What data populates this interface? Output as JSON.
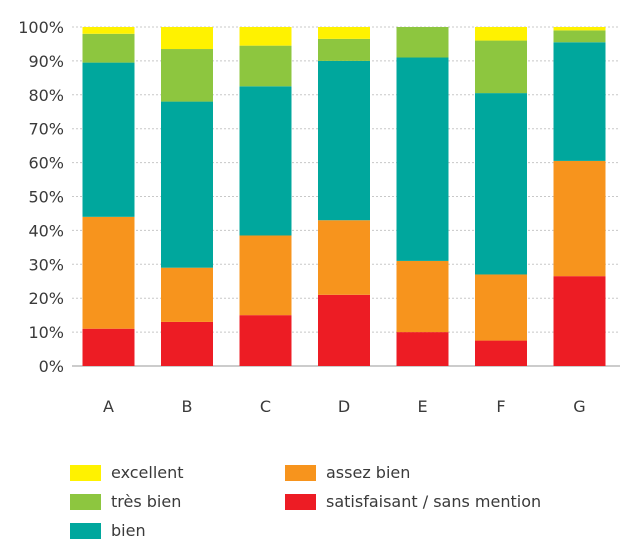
{
  "chart_data": {
    "type": "bar",
    "stacked": true,
    "categories": [
      "A",
      "B",
      "C",
      "D",
      "E",
      "F",
      "G"
    ],
    "series": [
      {
        "name": "satisfaisant / sans mention",
        "color": "#ed1c24",
        "values": [
          11,
          13,
          15,
          21,
          10,
          7.5,
          26.5
        ]
      },
      {
        "name": "assez bien",
        "color": "#f7941d",
        "values": [
          33,
          16,
          23.5,
          22,
          21,
          19.5,
          34
        ]
      },
      {
        "name": "bien",
        "color": "#00a79d",
        "values": [
          45.5,
          49,
          44,
          47,
          60,
          53.5,
          35
        ]
      },
      {
        "name": "très bien",
        "color": "#8dc63f",
        "values": [
          8.5,
          15.5,
          12,
          6.5,
          9,
          15.5,
          3.5
        ]
      },
      {
        "name": "excellent",
        "color": "#fff200",
        "values": [
          2,
          6.5,
          5.5,
          3.5,
          0,
          4,
          1
        ]
      }
    ],
    "y_ticks": [
      "0%",
      "10%",
      "20%",
      "30%",
      "40%",
      "50%",
      "60%",
      "70%",
      "80%",
      "90%",
      "100%"
    ],
    "ylim": [
      0,
      100
    ],
    "grid": true
  },
  "legend": {
    "items": [
      {
        "label": "excellent",
        "color": "#fff200"
      },
      {
        "label": "très bien",
        "color": "#8dc63f"
      },
      {
        "label": "bien",
        "color": "#00a79d"
      },
      {
        "label": "assez bien",
        "color": "#f7941d"
      },
      {
        "label": "satisfaisant / sans mention",
        "color": "#ed1c24"
      }
    ]
  }
}
